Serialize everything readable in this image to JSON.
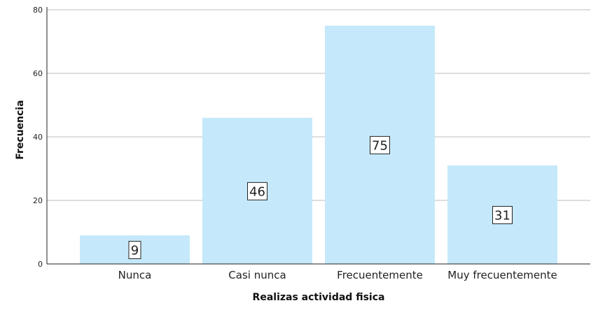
{
  "chart_data": {
    "type": "bar",
    "categories": [
      "Nunca",
      "Casi nunca",
      "Frecuentemente",
      "Muy frecuentemente"
    ],
    "values": [
      9,
      46,
      75,
      31
    ],
    "data_labels": [
      "9",
      "46",
      "75",
      "31"
    ],
    "title": "",
    "xlabel": "Realizas actividad fisica",
    "ylabel": "Frecuencia",
    "ylim": [
      0,
      80
    ],
    "yticks": [
      0,
      20,
      40,
      60,
      80
    ],
    "ytick_labels": [
      "0",
      "20",
      "40",
      "60",
      "80"
    ],
    "grid": true,
    "legend": "none",
    "bar_color": "#c5e9fb",
    "grid_color": "#bdbdbd",
    "axis_color": "#222222"
  }
}
